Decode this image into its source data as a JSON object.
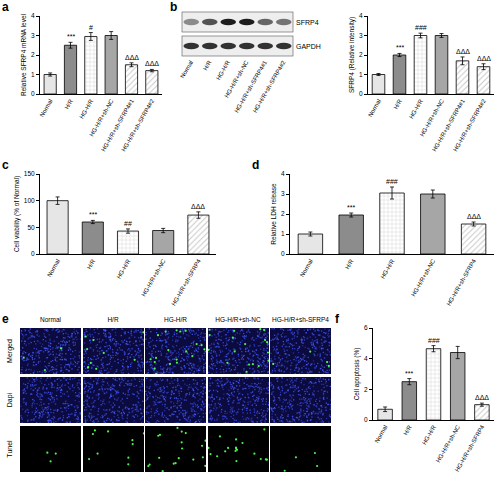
{
  "chart_data": [
    {
      "type": "bar",
      "label": "a",
      "y_label": "Relative SFRP4 mRNA level",
      "categories": [
        "Normal",
        "H/R",
        "HG-H/R",
        "HG-H/R+sh-NC",
        "HG-H/R+sh-SFRP4#1",
        "HG-H/R+sh-SFRP4#2"
      ],
      "values": [
        1.0,
        2.5,
        2.95,
        3.0,
        1.5,
        1.2
      ],
      "error": [
        0.08,
        0.15,
        0.2,
        0.2,
        0.1,
        0.06
      ],
      "annotations": [
        null,
        "***",
        "#",
        null,
        "ΔΔΔ",
        "ΔΔΔ"
      ],
      "colors": [
        "#e6e6e6",
        "#8c8c8c",
        "#d9d9d9",
        "#a6a6a6",
        "#c8c8c8",
        "#c8c8c8"
      ],
      "ylim": [
        0,
        4
      ],
      "yticks": [
        0,
        1,
        2,
        3,
        4
      ]
    },
    {
      "type": "bar",
      "y_label": "SFRP4 (Relative intensity)",
      "categories": [
        "Normal",
        "H/R",
        "HG-H/R",
        "HG-H/R+sh-NC",
        "HG-H/R+sh-SFRP4#1",
        "HG-H/R+sh-SFRP4#2"
      ],
      "values": [
        1.0,
        2.0,
        3.0,
        3.0,
        1.7,
        1.4
      ],
      "error": [
        0.05,
        0.08,
        0.12,
        0.1,
        0.2,
        0.15
      ],
      "annotations": [
        null,
        "***",
        "###",
        null,
        "ΔΔΔ",
        "ΔΔΔ"
      ],
      "colors": [
        "#e6e6e6",
        "#8c8c8c",
        "#d9d9d9",
        "#a6a6a6",
        "#c8c8c8",
        "#c8c8c8"
      ],
      "ylim": [
        0,
        4
      ],
      "yticks": [
        0,
        1,
        2,
        3,
        4
      ]
    },
    {
      "type": "bar",
      "label": "c",
      "y_label": "Cell viability (% of Normal)",
      "categories": [
        "Normal",
        "H/R",
        "HG-H/R",
        "HG-H/R+sh-NC",
        "HG-H/R+sh-SFRP4"
      ],
      "values": [
        100,
        60,
        43,
        44,
        73
      ],
      "error": [
        7,
        3,
        4,
        4,
        6
      ],
      "annotations": [
        null,
        "***",
        "##",
        null,
        "ΔΔΔ"
      ],
      "colors": [
        "#e6e6e6",
        "#8c8c8c",
        "#d9d9d9",
        "#a6a6a6",
        "#c8c8c8"
      ],
      "ylim": [
        0,
        150
      ],
      "yticks": [
        0,
        50,
        100,
        150
      ]
    },
    {
      "type": "bar",
      "label": "d",
      "y_label": "Relative LDH release",
      "categories": [
        "Normal",
        "H/R",
        "HG-H/R",
        "HG-H/R+sh-NC",
        "HG-H/R+sh-SFRP4"
      ],
      "values": [
        1.0,
        1.95,
        3.05,
        3.0,
        1.5
      ],
      "error": [
        0.1,
        0.1,
        0.3,
        0.2,
        0.1
      ],
      "annotations": [
        null,
        "***",
        "###",
        null,
        "ΔΔΔ"
      ],
      "colors": [
        "#e6e6e6",
        "#8c8c8c",
        "#d9d9d9",
        "#a6a6a6",
        "#c8c8c8"
      ],
      "ylim": [
        0,
        4
      ],
      "yticks": [
        0,
        1,
        2,
        3,
        4
      ]
    },
    {
      "type": "bar",
      "label": "f",
      "y_label": "Cell apoptosis (%)",
      "categories": [
        "Normal",
        "H/R",
        "HG-H/R",
        "HG-H/R+sh-NC",
        "HG-H/R+sh-SFRP4"
      ],
      "values": [
        0.7,
        2.5,
        4.65,
        4.4,
        1.0
      ],
      "error": [
        0.15,
        0.2,
        0.2,
        0.4,
        0.1
      ],
      "annotations": [
        null,
        "***",
        "###",
        null,
        "ΔΔΔ"
      ],
      "colors": [
        "#e6e6e6",
        "#8c8c8c",
        "#d9d9d9",
        "#a6a6a6",
        "#c8c8c8"
      ],
      "ylim": [
        0,
        6
      ],
      "yticks": [
        0,
        2,
        4,
        6
      ]
    }
  ],
  "blot": {
    "label": "b",
    "rows": [
      "SFRP4",
      "GAPDH"
    ],
    "lanes": [
      "Normal",
      "H/R",
      "HG-H/R",
      "HG-H/R+sh-NC",
      "HG-H/R+sh-SFRP4#1",
      "HG-H/R+sh-SFRP4#2"
    ]
  },
  "microscopy": {
    "label": "e",
    "rows": [
      "Merged",
      "Dapi",
      "Tunel"
    ],
    "columns": [
      "Normal",
      "H/R",
      "HG-H/R",
      "HG-H/R+sh-NC",
      "HG-H/R+sh-SFRP4"
    ]
  }
}
